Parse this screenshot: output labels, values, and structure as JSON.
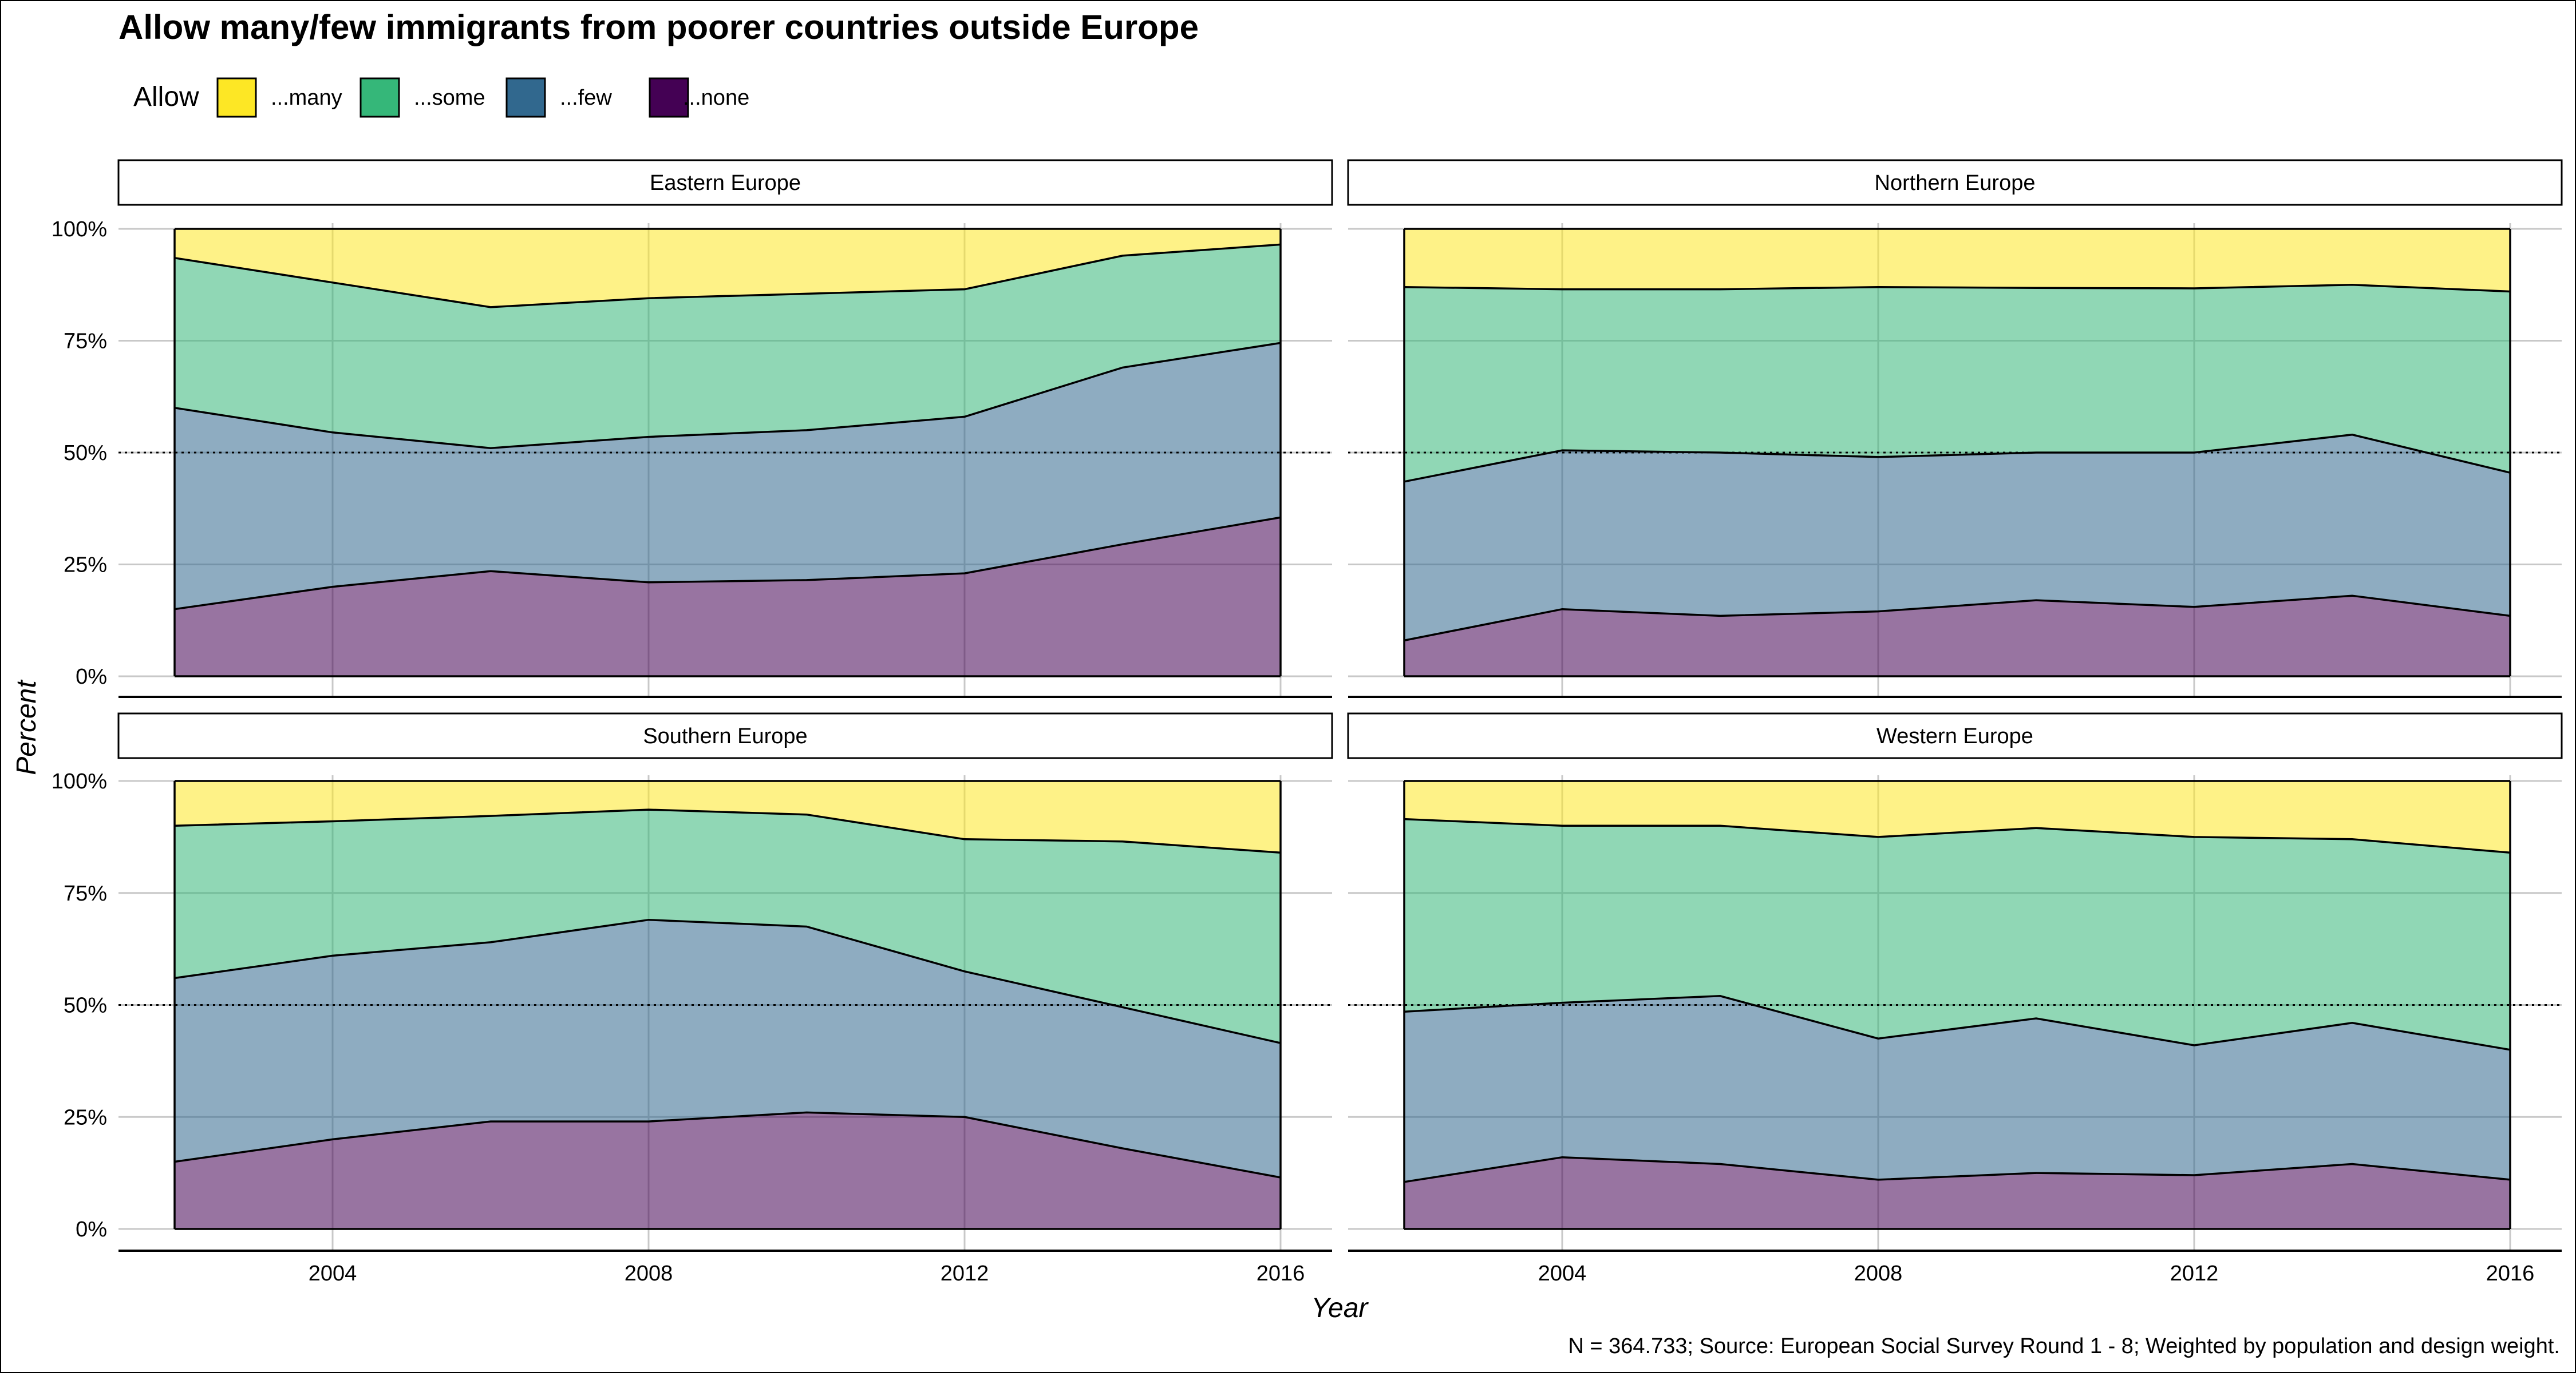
{
  "chart_data": {
    "type": "area",
    "title": "Allow many/few immigrants from poorer countries outside Europe",
    "xlabel": "Year",
    "ylabel": "Percent",
    "caption": "N = 364.733; Source: European Social Survey Round 1 - 8; Weighted by population and design weight.",
    "legend": {
      "title": "Allow",
      "position": "top-left",
      "entries": [
        {
          "label": "...many",
          "color": "#FDE725"
        },
        {
          "label": "...some",
          "color": "#35B779"
        },
        {
          "label": "...few",
          "color": "#31688E"
        },
        {
          "label": "...none",
          "color": "#440154"
        }
      ]
    },
    "stacked": true,
    "fill_alpha": 0.55,
    "reference_line": 50,
    "x": [
      2002,
      2004,
      2006,
      2008,
      2010,
      2012,
      2014,
      2016
    ],
    "x_ticks": [
      2004,
      2008,
      2012,
      2016
    ],
    "y_ticks": [
      0,
      25,
      50,
      75,
      100
    ],
    "y_tick_labels": [
      "0%",
      "25%",
      "50%",
      "75%",
      "100%"
    ],
    "ylim": [
      0,
      100
    ],
    "grid": true,
    "facets": [
      {
        "name": "Eastern Europe",
        "series": [
          {
            "name": "...none",
            "values": [
              15,
              20,
              23.5,
              21,
              21.5,
              23,
              29.5,
              35.5
            ]
          },
          {
            "name": "...few",
            "values": [
              45,
              34.5,
              27.5,
              32.5,
              33.5,
              35,
              39.5,
              39
            ]
          },
          {
            "name": "...some",
            "values": [
              33.5,
              33.5,
              31.5,
              31,
              30.5,
              28.5,
              25,
              22
            ]
          },
          {
            "name": "...many",
            "values": [
              6.5,
              12,
              17.5,
              15.5,
              14.5,
              13.5,
              6,
              3.5
            ]
          }
        ]
      },
      {
        "name": "Northern Europe",
        "series": [
          {
            "name": "...none",
            "values": [
              8,
              15,
              13.5,
              14.5,
              17,
              15.5,
              18,
              13.5
            ]
          },
          {
            "name": "...few",
            "values": [
              35.5,
              35.5,
              36.5,
              34.5,
              33,
              34.5,
              36,
              32
            ]
          },
          {
            "name": "...some",
            "values": [
              43.5,
              36,
              36.5,
              38,
              36.8,
              36.7,
              33.5,
              40.5
            ]
          },
          {
            "name": "...many",
            "values": [
              13,
              13.5,
              13.5,
              13,
              13.2,
              13.3,
              12.5,
              14
            ]
          }
        ]
      },
      {
        "name": "Southern Europe",
        "series": [
          {
            "name": "...none",
            "values": [
              15,
              20,
              24,
              24,
              26,
              25,
              18,
              11.5
            ]
          },
          {
            "name": "...few",
            "values": [
              41,
              41,
              40,
              45,
              41.5,
              32.5,
              31.5,
              30
            ]
          },
          {
            "name": "...some",
            "values": [
              34,
              30,
              28.2,
              24.6,
              25,
              29.5,
              37,
              42.5
            ]
          },
          {
            "name": "...many",
            "values": [
              10,
              9,
              7.8,
              6.4,
              7.5,
              13,
              13.5,
              16
            ]
          }
        ]
      },
      {
        "name": "Western Europe",
        "series": [
          {
            "name": "...none",
            "values": [
              10.5,
              16,
              14.5,
              11,
              12.5,
              12,
              14.5,
              11
            ]
          },
          {
            "name": "...few",
            "values": [
              38,
              34.5,
              37.5,
              31.5,
              34.5,
              29,
              31.5,
              29
            ]
          },
          {
            "name": "...some",
            "values": [
              43,
              39.5,
              38,
              45,
              42.5,
              46.5,
              41,
              44
            ]
          },
          {
            "name": "...many",
            "values": [
              8.5,
              10,
              10,
              12.5,
              10.5,
              12.5,
              13,
              16
            ]
          }
        ]
      }
    ]
  }
}
